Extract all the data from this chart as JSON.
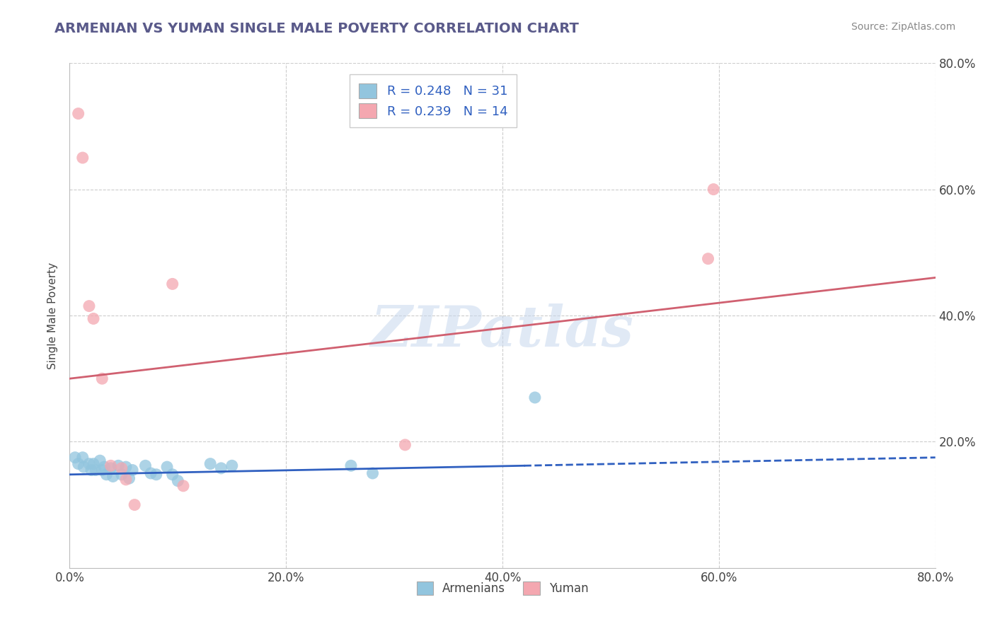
{
  "title": "ARMENIAN VS YUMAN SINGLE MALE POVERTY CORRELATION CHART",
  "source": "Source: ZipAtlas.com",
  "ylabel": "Single Male Poverty",
  "xlim": [
    0.0,
    0.8
  ],
  "ylim": [
    0.0,
    0.8
  ],
  "xtick_vals": [
    0.0,
    0.2,
    0.4,
    0.6,
    0.8
  ],
  "ytick_vals": [
    0.2,
    0.4,
    0.6,
    0.8
  ],
  "armenian_R": 0.248,
  "armenian_N": 31,
  "yuman_R": 0.239,
  "yuman_N": 14,
  "armenian_color": "#92C5DE",
  "yuman_color": "#F4A7B0",
  "armenian_line_color": "#3060C0",
  "yuman_line_color": "#D06070",
  "watermark": "ZIPatlas",
  "armenian_scatter": [
    [
      0.005,
      0.175
    ],
    [
      0.008,
      0.165
    ],
    [
      0.012,
      0.175
    ],
    [
      0.013,
      0.16
    ],
    [
      0.018,
      0.165
    ],
    [
      0.02,
      0.155
    ],
    [
      0.022,
      0.165
    ],
    [
      0.024,
      0.155
    ],
    [
      0.028,
      0.17
    ],
    [
      0.03,
      0.155
    ],
    [
      0.032,
      0.16
    ],
    [
      0.034,
      0.148
    ],
    [
      0.038,
      0.158
    ],
    [
      0.04,
      0.145
    ],
    [
      0.045,
      0.162
    ],
    [
      0.048,
      0.148
    ],
    [
      0.052,
      0.16
    ],
    [
      0.055,
      0.142
    ],
    [
      0.058,
      0.155
    ],
    [
      0.07,
      0.162
    ],
    [
      0.075,
      0.15
    ],
    [
      0.08,
      0.148
    ],
    [
      0.09,
      0.16
    ],
    [
      0.095,
      0.148
    ],
    [
      0.1,
      0.138
    ],
    [
      0.13,
      0.165
    ],
    [
      0.14,
      0.158
    ],
    [
      0.15,
      0.162
    ],
    [
      0.26,
      0.162
    ],
    [
      0.28,
      0.15
    ],
    [
      0.43,
      0.27
    ]
  ],
  "yuman_scatter": [
    [
      0.008,
      0.72
    ],
    [
      0.012,
      0.65
    ],
    [
      0.018,
      0.415
    ],
    [
      0.022,
      0.395
    ],
    [
      0.03,
      0.3
    ],
    [
      0.038,
      0.162
    ],
    [
      0.048,
      0.158
    ],
    [
      0.052,
      0.14
    ],
    [
      0.06,
      0.1
    ],
    [
      0.095,
      0.45
    ],
    [
      0.105,
      0.13
    ],
    [
      0.31,
      0.195
    ],
    [
      0.59,
      0.49
    ],
    [
      0.595,
      0.6
    ]
  ],
  "armenian_trendline": [
    [
      0.0,
      0.148
    ],
    [
      0.42,
      0.162
    ]
  ],
  "armenian_trendline_dashed": [
    [
      0.42,
      0.162
    ],
    [
      0.8,
      0.175
    ]
  ],
  "yuman_trendline": [
    [
      0.0,
      0.3
    ],
    [
      0.8,
      0.46
    ]
  ],
  "grid_color": "#CCCCCC",
  "bg_color": "#FFFFFF",
  "title_color": "#5A5A8A",
  "label_color": "#444444",
  "legend_label_armenian": "Armenians",
  "legend_label_yuman": "Yuman"
}
